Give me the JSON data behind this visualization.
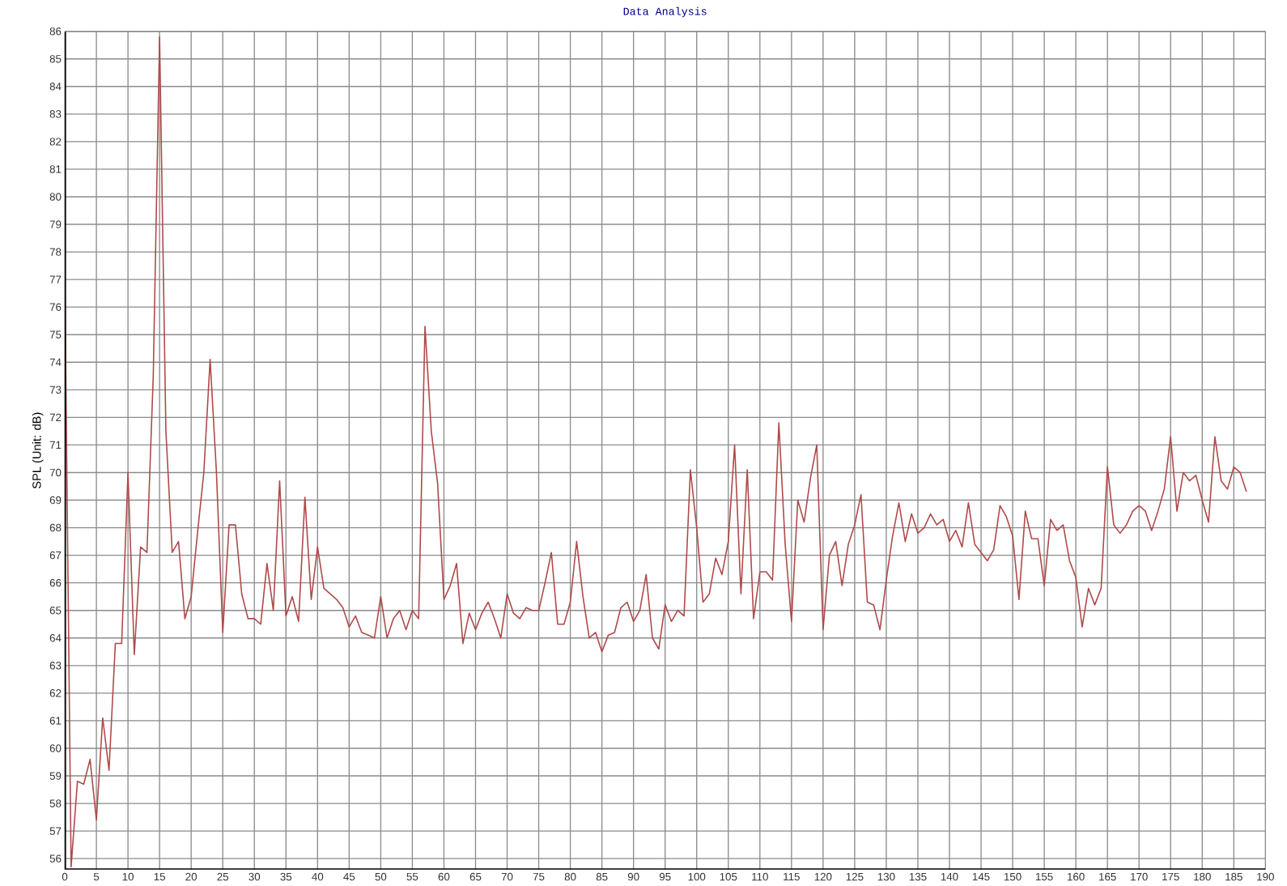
{
  "chart_data": {
    "type": "line",
    "title": "Data Analysis",
    "ylabel": "SPL (Unit: dB)",
    "x": [
      0,
      1,
      2,
      3,
      4,
      5,
      6,
      7,
      8,
      9,
      10,
      11,
      12,
      13,
      14,
      15,
      16,
      17,
      18,
      19,
      20,
      21,
      22,
      23,
      24,
      25,
      26,
      27,
      28,
      29,
      30,
      31,
      32,
      33,
      34,
      35,
      36,
      37,
      38,
      39,
      40,
      41,
      42,
      43,
      44,
      45,
      46,
      47,
      48,
      49,
      50,
      51,
      52,
      53,
      54,
      55,
      56,
      57,
      58,
      59,
      60,
      61,
      62,
      63,
      64,
      65,
      66,
      67,
      68,
      69,
      70,
      71,
      72,
      73,
      74,
      75,
      76,
      77,
      78,
      79,
      80,
      81,
      82,
      83,
      84,
      85,
      86,
      87,
      88,
      89,
      90,
      91,
      92,
      93,
      94,
      95,
      96,
      97,
      98,
      99,
      100,
      101,
      102,
      103,
      104,
      105,
      106,
      107,
      108,
      109,
      110,
      111,
      112,
      113,
      114,
      115,
      116,
      117,
      118,
      119,
      120,
      121,
      122,
      123,
      124,
      125,
      126,
      127,
      128,
      129,
      130,
      131,
      132,
      133,
      134,
      135,
      136,
      137,
      138,
      139,
      140,
      141,
      142,
      143,
      144,
      145,
      146,
      147,
      148,
      149,
      150,
      151,
      152,
      153,
      154,
      155,
      156,
      157,
      158,
      159,
      160,
      161,
      162,
      163,
      164,
      165,
      166,
      167,
      168,
      169,
      170,
      171,
      172,
      173,
      174,
      175,
      176,
      177,
      178,
      179,
      180,
      181,
      182,
      183,
      184,
      185,
      186,
      187
    ],
    "series": [
      {
        "color": "#b04a4a",
        "values": [
          77.0,
          55.7,
          58.8,
          58.7,
          59.6,
          57.4,
          61.1,
          59.2,
          63.8,
          63.8,
          70.0,
          63.4,
          67.3,
          67.1,
          73.5,
          85.8,
          71.5,
          67.1,
          67.5,
          64.7,
          65.5,
          67.8,
          70.0,
          74.1,
          70.0,
          64.2,
          68.1,
          68.1,
          65.6,
          64.7,
          64.7,
          64.5,
          66.7,
          65.0,
          69.7,
          64.8,
          65.5,
          64.6,
          69.1,
          65.4,
          67.3,
          65.8,
          65.6,
          65.4,
          65.1,
          64.4,
          64.8,
          64.2,
          64.1,
          64.0,
          65.5,
          64.0,
          64.7,
          65.0,
          64.3,
          65.0,
          64.7,
          75.3,
          71.5,
          69.6,
          65.4,
          65.9,
          66.7,
          63.8,
          64.9,
          64.3,
          64.9,
          65.3,
          64.7,
          64.0,
          65.6,
          64.9,
          64.7,
          65.1,
          65.0,
          65.0,
          66.0,
          67.1,
          64.5,
          64.5,
          65.3,
          67.5,
          65.5,
          64.0,
          64.2,
          63.5,
          64.1,
          64.2,
          65.1,
          65.3,
          64.6,
          65.0,
          66.3,
          64.0,
          63.6,
          65.2,
          64.6,
          65.0,
          64.8,
          70.1,
          68.0,
          65.3,
          65.6,
          66.9,
          66.3,
          67.5,
          71.0,
          65.6,
          70.1,
          64.7,
          66.4,
          66.4,
          66.1,
          71.8,
          67.4,
          64.6,
          69.0,
          68.2,
          69.8,
          71.0,
          64.3,
          67.0,
          67.5,
          65.9,
          67.4,
          68.1,
          69.2,
          65.3,
          65.2,
          64.3,
          66.1,
          67.7,
          68.9,
          67.5,
          68.5,
          67.8,
          68.0,
          68.5,
          68.1,
          68.3,
          67.5,
          67.9,
          67.3,
          68.9,
          67.4,
          67.1,
          66.8,
          67.2,
          68.8,
          68.4,
          67.7,
          65.4,
          68.6,
          67.6,
          67.6,
          65.9,
          68.3,
          67.9,
          68.1,
          66.8,
          66.2,
          64.4,
          65.8,
          65.2,
          65.8,
          70.2,
          68.1,
          67.8,
          68.1,
          68.6,
          68.8,
          68.6,
          67.9,
          68.6,
          69.4,
          71.3,
          68.6,
          70.0,
          69.7,
          69.9,
          69.0,
          68.2,
          71.3,
          69.7,
          69.4,
          70.2,
          70.0,
          69.3
        ]
      }
    ],
    "xlim": [
      0,
      190
    ],
    "ylim": [
      55.6,
      86
    ],
    "xticks": [
      0,
      5,
      10,
      15,
      20,
      25,
      30,
      35,
      40,
      45,
      50,
      55,
      60,
      65,
      70,
      75,
      80,
      85,
      90,
      95,
      100,
      105,
      110,
      115,
      120,
      125,
      130,
      135,
      140,
      145,
      150,
      155,
      160,
      165,
      170,
      175,
      180,
      185,
      190
    ],
    "yticks": [
      56,
      57,
      58,
      59,
      60,
      61,
      62,
      63,
      64,
      65,
      66,
      67,
      68,
      69,
      70,
      71,
      72,
      73,
      74,
      75,
      76,
      77,
      78,
      79,
      80,
      81,
      82,
      83,
      84,
      85,
      86
    ],
    "grid": true,
    "marker": "none",
    "line_style": "solid"
  }
}
